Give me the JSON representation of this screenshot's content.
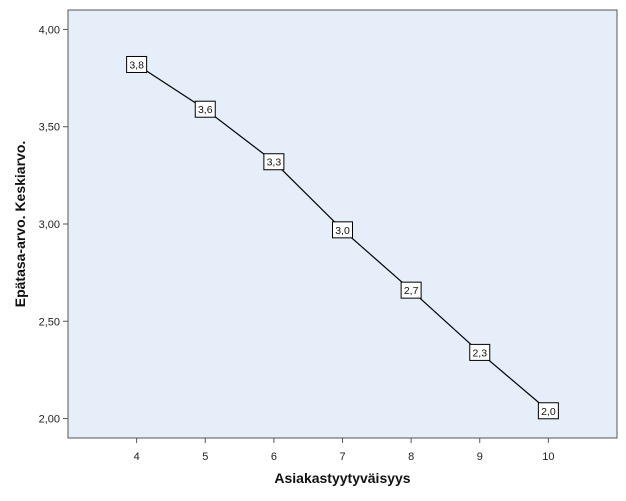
{
  "chart_data": {
    "type": "line",
    "title": "",
    "xlabel": "Asiakastyytyväisyys",
    "ylabel": "Epätasa-arvo. Keskiarvo.",
    "x": [
      4,
      5,
      6,
      7,
      8,
      9,
      10
    ],
    "xlim": [
      3,
      11
    ],
    "xticks": [
      "4",
      "5",
      "6",
      "7",
      "8",
      "9",
      "10"
    ],
    "ylim": [
      1.9,
      4.1
    ],
    "yticks": [
      2.0,
      2.5,
      3.0,
      3.5,
      4.0
    ],
    "ytick_labels": [
      "2,00",
      "2,50",
      "3,00",
      "3,50",
      "4,00"
    ],
    "series": [
      {
        "values": [
          3.82,
          3.59,
          3.32,
          2.97,
          2.66,
          2.34,
          2.04
        ],
        "labels": [
          "3,8",
          "3,6",
          "3,3",
          "3,0",
          "2,7",
          "2,3",
          "2,0"
        ]
      }
    ],
    "grid": false,
    "colors": {
      "plot_background": "#e6eefa",
      "line": "#000000",
      "label_box": "#ffffff",
      "axis": "#555555"
    }
  }
}
